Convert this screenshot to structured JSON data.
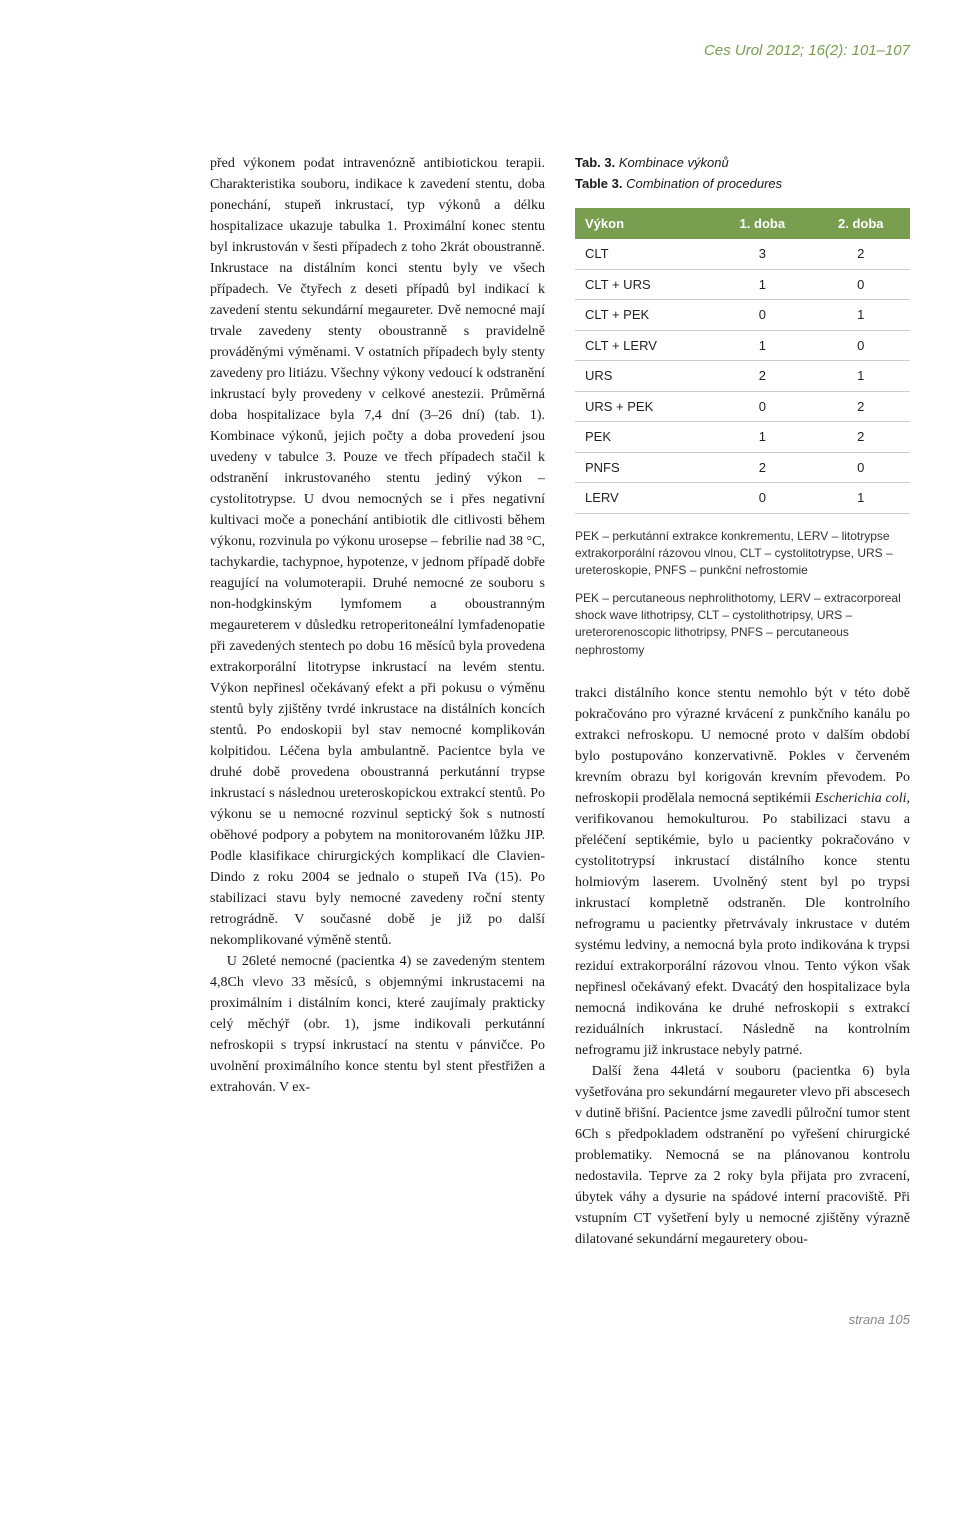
{
  "journal_ref": "Ces Urol 2012; 16(2): 101–107",
  "colors": {
    "accent": "#7a9e4f",
    "table_border": "#cccccc",
    "text": "#1a1a1a",
    "footer": "#888888",
    "background": "#ffffff"
  },
  "col_mid": {
    "p1": "před výkonem podat intravenózně antibiotickou terapii. Charakteristika souboru, indikace k zavedení stentu, doba ponechání, stupeň inkrustací, typ výkonů a délku hospitalizace ukazuje tabulka 1. Proximální konec stentu byl inkrustován v šesti případech z toho 2krát oboustranně. Inkrustace na distálním konci stentu byly ve všech případech. Ve čtyřech z deseti případů byl indikací k zavedení stentu sekundární megaureter. Dvě nemocné mají trvale zavedeny stenty oboustranně s pravidelně prováděnými výměnami. V ostatních případech byly stenty zavedeny pro litiázu. Všechny výkony vedoucí k odstranění inkrustací byly provedeny v celkové anestezii. Průměrná doba hospitalizace byla 7,4 dní (3–26 dní) (tab. 1). Kombinace výkonů, jejich počty a doba provedení jsou uvedeny v tabulce 3. Pouze ve třech případech stačil k odstranění inkrustovaného stentu jediný výkon – cystolitotrypse. U dvou nemocných se i přes negativní kultivaci moče a ponechání antibiotik dle citlivosti během výkonu, rozvinula po výkonu urosepse – febrilie nad 38 °C, tachykardie, tachypnoe, hypotenze, v jednom případě dobře reagující na volumoterapii. Druhé nemocné ze souboru s non-hodgkinským lymfomem a oboustranným megaureterem v důsledku retroperitoneální lymfadenopatie při zavedených stentech po dobu 16 měsíců byla provedena extrakorporální litotrypse inkrustací na levém stentu. Výkon nepřinesl očekávaný efekt a při pokusu o výměnu stentů byly zjištěny tvrdé inkrustace na distálních koncích stentů. Po endoskopii byl stav nemocné komplikován kolpitidou. Léčena byla ambulantně. Pacientce byla ve druhé době provedena oboustranná perkutánní trypse inkrustací s následnou ureteroskopickou extrakcí stentů. Po výkonu se u nemocné rozvinul septický šok s nutností oběhové podpory a pobytem na monitorovaném lůžku JIP. Podle klasifikace chirurgických komplikací dle Clavien-Dindo z roku 2004 se jednalo o stupeň IVa (15). Po stabilizaci stavu byly nemocné zavedeny roční stenty retrográdně. V současné době je již po další nekomplikované výměně stentů.",
    "p2": "U 26leté nemocné (pacientka 4) se zavedeným stentem 4,8Ch vlevo 33 měsíců, s objemnými inkrustacemi na proximálním i distálním konci, které zaujímaly prakticky celý měchýř (obr. 1), jsme indikovali perkutánní nefroskopii s trypsí inkrustací na stentu v pánvičce. Po uvolnění proximálního konce stentu byl stent přestřižen a extrahován. V ex-"
  },
  "table3": {
    "caption_cs_bold": "Tab. 3.",
    "caption_cs_it": "Kombinace výkonů",
    "caption_en_bold": "Table 3.",
    "caption_en_it": "Combination of procedures",
    "headers": {
      "c0": "Výkon",
      "c1": "1. doba",
      "c2": "2. doba"
    },
    "rows": [
      {
        "name": "CLT",
        "d1": "3",
        "d2": "2"
      },
      {
        "name": "CLT + URS",
        "d1": "1",
        "d2": "0"
      },
      {
        "name": "CLT + PEK",
        "d1": "0",
        "d2": "1"
      },
      {
        "name": "CLT + LERV",
        "d1": "1",
        "d2": "0"
      },
      {
        "name": "URS",
        "d1": "2",
        "d2": "1"
      },
      {
        "name": "URS + PEK",
        "d1": "0",
        "d2": "2"
      },
      {
        "name": "PEK",
        "d1": "1",
        "d2": "2"
      },
      {
        "name": "PNFS",
        "d1": "2",
        "d2": "0"
      },
      {
        "name": "LERV",
        "d1": "0",
        "d2": "1"
      }
    ],
    "footnote_cs": "PEK – perkutánní extrakce konkrementu, LERV – litotrypse extrakorporální rázovou vlnou, CLT – cystolitotrypse, URS – ureteroskopie, PNFS – punkční nefrostomie",
    "footnote_en": "PEK – percutaneous nephrolithotomy, LERV – extracorporeal shock wave lithotripsy, CLT – cystolithotripsy, URS – ureterorenoscopic lithotripsy, PNFS – percutaneous nephrostomy"
  },
  "col_right": {
    "p1a": "trakci distálního konce stentu nemohlo být v této době pokračováno pro výrazné krvácení z punkčního kanálu po extrakci nefroskopu. U nemocné proto v dalším období bylo postupováno konzervativně. Pokles v červeném krevním obrazu byl korigován krevním převodem. Po nefroskopii prodělala nemocná septikémii ",
    "p1_sci": "Escherichia coli",
    "p1b": ", verifikovanou hemokulturou. Po stabilizaci stavu a přeléčení septikémie, bylo u pacientky pokračováno v cystolitotrypsí inkrustací distálního konce stentu holmiovým laserem. Uvolněný stent byl po trypsi inkrustací kompletně odstraněn. Dle kontrolního nefrogramu u pacientky přetrvávaly inkrustace v dutém systému ledviny, a nemocná byla proto indikována k trypsi reziduí extrakorporální rázovou vlnou. Tento výkon však nepřinesl očekávaný efekt. Dvacátý den hospitalizace byla nemocná indikována ke druhé nefroskopii s extrakcí reziduálních inkrustací. Následně na kontrolním nefrogramu již inkrustace nebyly patrné.",
    "p2": "Další žena 44letá v souboru (pacientka 6) byla vyšetřována pro sekundární megaureter vlevo při abscesech v dutině břišní. Pacientce jsme zavedli půlroční tumor stent 6Ch s předpokladem odstranění po vyřešení chirurgické problematiky. Nemocná se na plánovanou kontrolu nedostavila. Teprve za 2 roky byla přijata pro zvracení, úbytek váhy a dysurie na spádové interní pracoviště. Při vstupním CT vyšetření byly u nemocné zjištěny výrazně dilatované sekundární megauretery obou-"
  },
  "page_label": "strana 105"
}
